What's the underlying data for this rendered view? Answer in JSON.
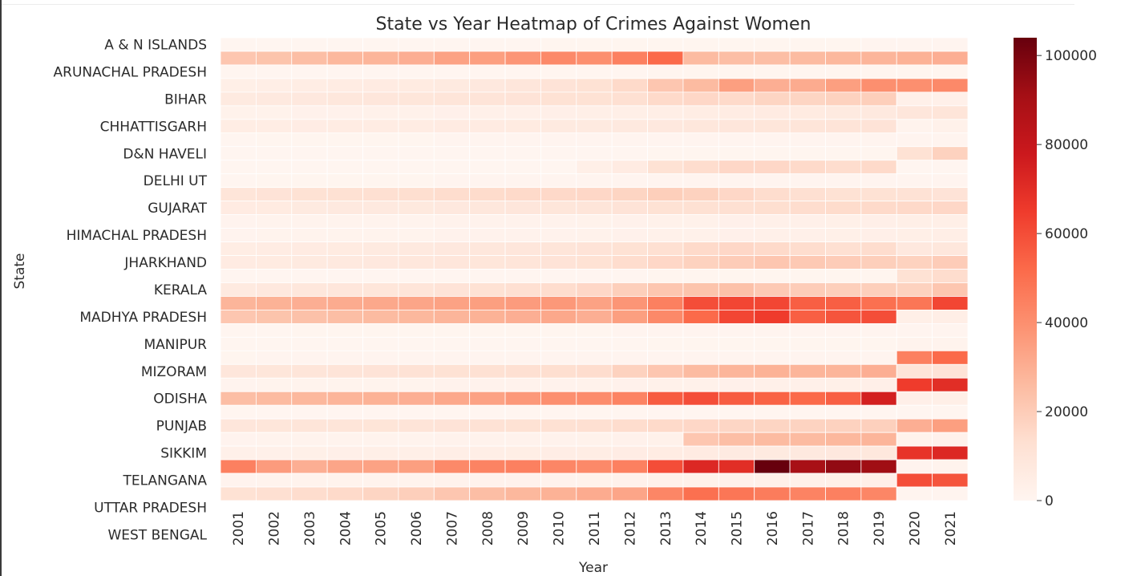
{
  "chart_data": {
    "type": "heatmap",
    "title": "State vs Year Heatmap of Crimes Against Women",
    "xlabel": "Year",
    "ylabel": "State",
    "colormap": "Reds",
    "vmin": 0,
    "vmax": 104000,
    "colorbar_ticks": [
      "0",
      "20000",
      "40000",
      "60000",
      "80000",
      "100000"
    ],
    "colorbar_tick_values": [
      0,
      20000,
      40000,
      60000,
      80000,
      100000
    ],
    "x": [
      "2001",
      "2002",
      "2003",
      "2004",
      "2005",
      "2006",
      "2007",
      "2008",
      "2009",
      "2010",
      "2011",
      "2012",
      "2013",
      "2014",
      "2015",
      "2016",
      "2017",
      "2018",
      "2019",
      "2020",
      "2021"
    ],
    "y_tick_labels": [
      "A & N ISLANDS",
      "ARUNACHAL PRADESH",
      "BIHAR",
      "CHHATTISGARH",
      "D&N HAVELI",
      "DELHI UT",
      "GUJARAT",
      "HIMACHAL PRADESH",
      "JHARKHAND",
      "KERALA",
      "MADHYA PRADESH",
      "MANIPUR",
      "MIZORAM",
      "ODISHA",
      "PUNJAB",
      "SIKKIM",
      "TELANGANA",
      "UTTAR PRADESH",
      "WEST BENGAL"
    ],
    "rows": [
      [
        130,
        140,
        150,
        160,
        170,
        180,
        190,
        200,
        210,
        220,
        230,
        240,
        250,
        260,
        270,
        280,
        290,
        300,
        310,
        320,
        330
      ],
      [
        22000,
        23000,
        25000,
        27000,
        28000,
        30000,
        34000,
        35000,
        38000,
        42000,
        40000,
        45000,
        52000,
        26000,
        25000,
        25000,
        26000,
        27000,
        28000,
        29000,
        30000
      ],
      [
        100,
        110,
        120,
        130,
        140,
        150,
        160,
        170,
        180,
        190,
        200,
        210,
        220,
        230,
        240,
        250,
        260,
        270,
        280,
        290,
        300
      ],
      [
        4000,
        4500,
        5000,
        5500,
        6000,
        6500,
        7000,
        8000,
        9000,
        11000,
        12000,
        15000,
        22000,
        26000,
        35000,
        30000,
        31000,
        35000,
        40000,
        40000,
        42000
      ],
      [
        7000,
        7500,
        8000,
        8500,
        9000,
        9500,
        10000,
        10500,
        11000,
        12000,
        12000,
        13000,
        15000,
        16000,
        15000,
        17000,
        17000,
        18000,
        19000,
        3000,
        3200
      ],
      [
        2000,
        2100,
        2200,
        2300,
        2500,
        2600,
        2800,
        3000,
        3200,
        3500,
        3800,
        4000,
        4500,
        5000,
        5500,
        6000,
        6500,
        7000,
        7500,
        9000,
        10000
      ],
      [
        5000,
        5200,
        5400,
        5500,
        5600,
        5800,
        6000,
        6200,
        6500,
        6800,
        7000,
        7500,
        8000,
        8500,
        9000,
        9500,
        10000,
        10500,
        11000,
        1500,
        2500
      ],
      [
        200,
        220,
        240,
        260,
        280,
        300,
        320,
        340,
        360,
        380,
        400,
        420,
        440,
        460,
        480,
        500,
        520,
        540,
        560,
        550,
        600
      ],
      [
        100,
        110,
        120,
        130,
        140,
        150,
        160,
        170,
        180,
        190,
        200,
        210,
        220,
        230,
        240,
        250,
        260,
        270,
        280,
        12000,
        18000
      ],
      [
        100,
        110,
        120,
        130,
        140,
        150,
        160,
        170,
        180,
        190,
        4000,
        6000,
        12000,
        14000,
        16000,
        16000,
        15000,
        14000,
        15000,
        150,
        160
      ],
      [
        200,
        220,
        240,
        260,
        280,
        300,
        320,
        340,
        360,
        380,
        400,
        420,
        440,
        460,
        480,
        500,
        520,
        540,
        560,
        580,
        600
      ],
      [
        10000,
        11000,
        12000,
        12500,
        13000,
        13500,
        14000,
        14500,
        15000,
        15500,
        16000,
        17000,
        19000,
        18000,
        16000,
        14000,
        13000,
        12000,
        12000,
        11500,
        11000
      ],
      [
        6000,
        6500,
        7000,
        7200,
        7400,
        7600,
        8000,
        8500,
        9000,
        9500,
        10000,
        11000,
        12000,
        12500,
        13000,
        13500,
        14000,
        14500,
        15000,
        15500,
        16000
      ],
      [
        1000,
        1100,
        1200,
        1300,
        1400,
        1500,
        1600,
        1700,
        1800,
        1900,
        2000,
        2200,
        2400,
        2600,
        2800,
        3000,
        3200,
        3400,
        3600,
        3800,
        4000
      ],
      [
        1000,
        1100,
        1200,
        1300,
        1400,
        1500,
        1600,
        1700,
        1800,
        1900,
        2000,
        2200,
        2400,
        2600,
        2800,
        3000,
        3200,
        3400,
        3600,
        4000,
        4500
      ],
      [
        5000,
        5500,
        6000,
        6500,
        7000,
        7500,
        8000,
        8500,
        9000,
        10000,
        11000,
        12000,
        13000,
        15000,
        16000,
        15000,
        14000,
        13000,
        14000,
        8000,
        8500
      ],
      [
        6000,
        6500,
        7000,
        7500,
        8000,
        8500,
        9000,
        9500,
        10000,
        11000,
        12000,
        14000,
        16000,
        18000,
        20000,
        22000,
        21000,
        20000,
        19000,
        18000,
        20000
      ],
      [
        100,
        110,
        120,
        130,
        140,
        150,
        160,
        170,
        180,
        190,
        200,
        210,
        220,
        230,
        240,
        250,
        260,
        270,
        280,
        12000,
        14000
      ],
      [
        7000,
        8000,
        8500,
        9000,
        9500,
        10000,
        11000,
        12000,
        13000,
        14000,
        16000,
        19000,
        22000,
        23000,
        24000,
        21000,
        20000,
        19000,
        19000,
        18000,
        22000
      ],
      [
        28000,
        29000,
        30000,
        31000,
        32000,
        33000,
        34000,
        35000,
        36000,
        37000,
        34000,
        38000,
        45000,
        60000,
        62000,
        62000,
        55000,
        55000,
        50000,
        48000,
        62000
      ],
      [
        22000,
        23000,
        24000,
        25000,
        26000,
        27000,
        28000,
        29000,
        30000,
        32000,
        30000,
        35000,
        42000,
        52000,
        62000,
        65000,
        55000,
        58000,
        60000,
        4000,
        4500
      ],
      [
        200,
        210,
        220,
        230,
        240,
        250,
        260,
        270,
        280,
        290,
        300,
        320,
        340,
        360,
        380,
        400,
        420,
        440,
        460,
        500,
        550
      ],
      [
        100,
        110,
        120,
        130,
        140,
        150,
        160,
        170,
        180,
        190,
        200,
        210,
        220,
        230,
        240,
        250,
        260,
        270,
        280,
        1200,
        1300
      ],
      [
        300,
        310,
        320,
        330,
        340,
        350,
        360,
        370,
        380,
        390,
        400,
        420,
        440,
        460,
        480,
        500,
        520,
        540,
        560,
        45000,
        52000
      ],
      [
        9000,
        9500,
        10000,
        10500,
        11000,
        11500,
        12000,
        12500,
        13000,
        13500,
        14000,
        18000,
        22000,
        26000,
        28000,
        29000,
        28000,
        28000,
        30000,
        10000,
        11000
      ],
      [
        1000,
        1100,
        1200,
        1300,
        1400,
        1500,
        1600,
        1700,
        1800,
        1900,
        2000,
        2200,
        2400,
        2600,
        2800,
        3000,
        3200,
        3400,
        3600,
        65000,
        70000
      ],
      [
        25000,
        26000,
        27000,
        28000,
        29000,
        30000,
        32000,
        34000,
        37000,
        40000,
        41000,
        44000,
        56000,
        60000,
        56000,
        54000,
        52000,
        55000,
        75000,
        3500,
        4000
      ],
      [
        50,
        55,
        60,
        65,
        70,
        75,
        80,
        85,
        90,
        95,
        100,
        105,
        110,
        115,
        120,
        125,
        130,
        135,
        140,
        150,
        160
      ],
      [
        9000,
        9500,
        10000,
        10000,
        10200,
        10500,
        11000,
        11500,
        12000,
        12500,
        13000,
        14000,
        15000,
        16000,
        16500,
        17000,
        17500,
        18000,
        18500,
        30000,
        35000
      ],
      [
        1000,
        1100,
        1200,
        1300,
        1400,
        1500,
        1600,
        1700,
        1800,
        1900,
        2000,
        2200,
        2400,
        22000,
        25000,
        26000,
        26000,
        27000,
        28000,
        2000,
        2200
      ],
      [
        3000,
        3200,
        3400,
        3600,
        3800,
        4000,
        4200,
        4400,
        4600,
        4800,
        5000,
        5400,
        5800,
        6200,
        6600,
        7000,
        7400,
        7800,
        8200,
        68000,
        72000
      ],
      [
        45000,
        36000,
        30000,
        33000,
        34000,
        35000,
        42000,
        44000,
        45000,
        43000,
        42000,
        45000,
        60000,
        72000,
        70000,
        104000,
        90000,
        95000,
        92000,
        1000,
        1200
      ],
      [
        1000,
        1100,
        1200,
        1300,
        1400,
        1500,
        1600,
        1700,
        1800,
        1900,
        2000,
        2200,
        2400,
        2600,
        2800,
        3000,
        3200,
        3400,
        3600,
        60000,
        58000
      ],
      [
        12000,
        13000,
        14000,
        15000,
        17000,
        19000,
        22000,
        25000,
        27000,
        29000,
        31000,
        33000,
        43000,
        50000,
        48000,
        46000,
        44000,
        45000,
        43000,
        500,
        600
      ]
    ]
  }
}
